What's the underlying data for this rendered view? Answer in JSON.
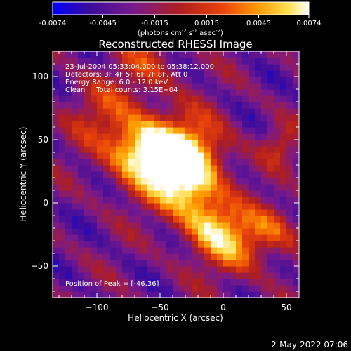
{
  "colorbar": {
    "ticks": [
      "-0.0074",
      "-0.0045",
      "-0.0015",
      "0.0015",
      "0.0045",
      "0.0074"
    ],
    "units": "(photons cm",
    "units_exp1": "-2",
    "units_mid": " s",
    "units_exp2": "-1",
    "units_mid2": " asec",
    "units_exp3": "-2",
    "units_close": ")"
  },
  "chart_data": {
    "type": "heatmap",
    "title": "Reconstructed RHESSI Image",
    "xlabel": "Heliocentric X (arcsec)",
    "ylabel": "Heliocentric Y (arcsec)",
    "xlim": [
      -135,
      60
    ],
    "ylim": [
      -75,
      120
    ],
    "x_ticks": [
      -100,
      -50,
      0,
      50
    ],
    "y_ticks": [
      100,
      50,
      0,
      -50
    ],
    "x_tick_labels": [
      "−100",
      "−50",
      "0",
      "50"
    ],
    "y_tick_labels": [
      "100",
      "50",
      "0",
      "−50"
    ],
    "color_range": [
      -0.0074,
      0.0074
    ],
    "colormap": [
      "#0000ff",
      "#3a0c9e",
      "#7a1a8a",
      "#b01e1e",
      "#e8420a",
      "#ff9a00",
      "#ffe050",
      "#ffffff"
    ],
    "peak": [
      -46,
      36
    ],
    "annotations": [
      "23-Jul-2004 05:33:04.000 to 05:38:12.000",
      "Detectors: 3F 4F 5F 6F 7F 8F, Att 0",
      "Energy Range: 6.0 - 12.0 keV",
      "Clean     Total counts: 3.15E+04",
      "Position of Peak = [-46,36]"
    ],
    "grid": false
  },
  "footer": {
    "date": "2-May-2022 07:06"
  }
}
